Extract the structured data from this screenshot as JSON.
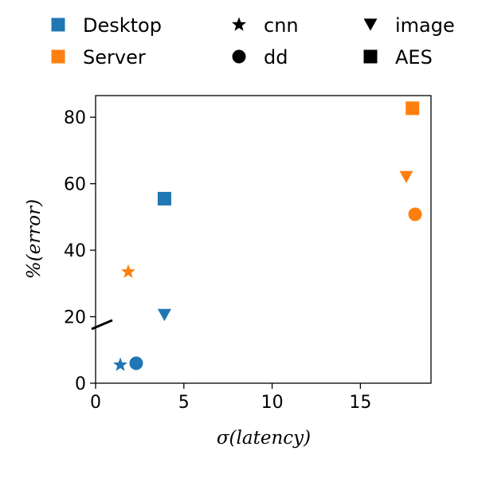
{
  "chart_data": {
    "type": "scatter",
    "xlabel": "σ(latency)",
    "ylabel": "%(error)",
    "xlim": [
      0,
      19
    ],
    "ylim": [
      0,
      86.5
    ],
    "xticks": [
      0,
      5,
      10,
      15
    ],
    "yticks": [
      0,
      20,
      40,
      60,
      80
    ],
    "grid": false,
    "legend_position": "top",
    "colors": {
      "Desktop": "#1f77b4",
      "Server": "#ff7f0e"
    },
    "legend": {
      "platforms": [
        {
          "name": "Desktop",
          "color": "#1f77b4",
          "marker": "square"
        },
        {
          "name": "Server",
          "color": "#ff7f0e",
          "marker": "square"
        }
      ],
      "workloads": [
        {
          "name": "cnn",
          "marker": "star"
        },
        {
          "name": "dd",
          "marker": "circle"
        },
        {
          "name": "image",
          "marker": "triangle-down"
        },
        {
          "name": "AES",
          "marker": "square"
        }
      ]
    },
    "series": [
      {
        "name": "Desktop",
        "points": [
          {
            "workload": "cnn",
            "x": 1.4,
            "y": 5.5
          },
          {
            "workload": "dd",
            "x": 2.3,
            "y": 6.0
          },
          {
            "workload": "image",
            "x": 3.9,
            "y": 20.5
          },
          {
            "workload": "AES",
            "x": 3.9,
            "y": 55.5
          }
        ]
      },
      {
        "name": "Server",
        "points": [
          {
            "workload": "cnn",
            "x": 1.85,
            "y": 33.5
          },
          {
            "workload": "dd",
            "x": 18.1,
            "y": 50.8
          },
          {
            "workload": "image",
            "x": 17.6,
            "y": 62.0
          },
          {
            "workload": "AES",
            "x": 17.95,
            "y": 82.7
          }
        ]
      }
    ]
  }
}
